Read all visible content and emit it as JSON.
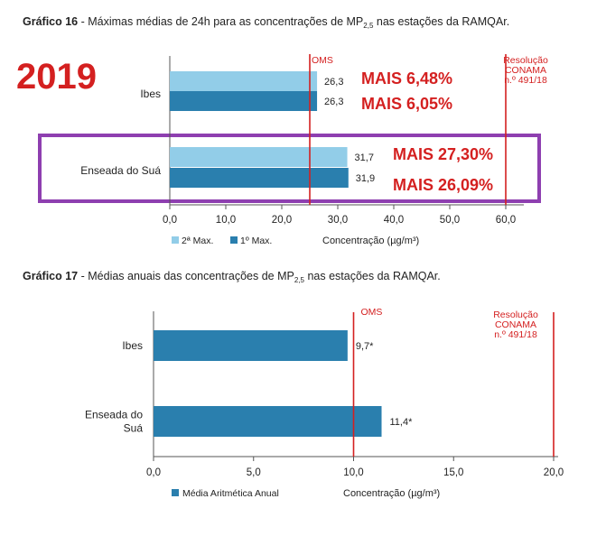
{
  "year_badge": "2019",
  "colors": {
    "light_bar": "#92CDE8",
    "dark_bar": "#2A7FAE",
    "ref_line": "#D42020",
    "highlight": "#8E3FB0",
    "text": "#222222",
    "axis": "#555555"
  },
  "chart_data": [
    {
      "type": "bar",
      "orientation": "horizontal",
      "title_prefix": "Gráfico 16",
      "title": " - Máximas médias de 24h para as concentrações de MP",
      "title_sub": "2,5",
      "title_suffix": " nas estações da RAMQAr.",
      "categories": [
        "Ibes",
        "Enseada do Suá"
      ],
      "series": [
        {
          "name": "2ª Max.",
          "color": "#92CDE8",
          "values": [
            26.3,
            31.7
          ],
          "labels": [
            "26,3",
            "31,7"
          ]
        },
        {
          "name": "1º Max.",
          "color": "#2A7FAE",
          "values": [
            26.3,
            31.9
          ],
          "labels": [
            "26,3",
            "31,9"
          ]
        }
      ],
      "annotations": [
        [
          "MAIS 6,48%",
          "MAIS 6,05%"
        ],
        [
          "MAIS 27,30%",
          "MAIS 26,09%"
        ]
      ],
      "xlim": [
        0,
        60
      ],
      "xticks": [
        0,
        10,
        20,
        30,
        40,
        50,
        60
      ],
      "xtick_labels": [
        "0,0",
        "10,0",
        "20,0",
        "30,0",
        "40,0",
        "50,0",
        "60,0"
      ],
      "xlabel": "Concentração (µg/m³)",
      "reference_lines": [
        {
          "value": 25,
          "label_lines": [
            "OMS"
          ]
        },
        {
          "value": 60,
          "label_lines": [
            "Resolução",
            "CONAMA",
            "n.º 491/18"
          ]
        }
      ],
      "highlighted_category": "Enseada do Suá",
      "legend_position": "bottom-left",
      "grid": false
    },
    {
      "type": "bar",
      "orientation": "horizontal",
      "title_prefix": "Gráfico 17",
      "title": " - Médias anuais das concentrações de MP",
      "title_sub": "2,5",
      "title_suffix": " nas estações da RAMQAr.",
      "categories": [
        [
          "Ibes"
        ],
        [
          "Enseada do",
          "Suá"
        ]
      ],
      "series": [
        {
          "name": "Média Aritmética Anual",
          "color": "#2A7FAE",
          "values": [
            9.7,
            11.4
          ],
          "labels": [
            "9,7*",
            "11,4*"
          ]
        }
      ],
      "xlim": [
        0,
        20
      ],
      "xticks": [
        0,
        5,
        10,
        15,
        20
      ],
      "xtick_labels": [
        "0,0",
        "5,0",
        "10,0",
        "15,0",
        "20,0"
      ],
      "xlabel": "Concentração (µg/m³)",
      "reference_lines": [
        {
          "value": 10,
          "label_lines": [
            "OMS"
          ]
        },
        {
          "value": 20,
          "label_lines": [
            "Resolução",
            "CONAMA",
            "n.º 491/18"
          ]
        }
      ],
      "legend_position": "bottom-left",
      "grid": false
    }
  ]
}
